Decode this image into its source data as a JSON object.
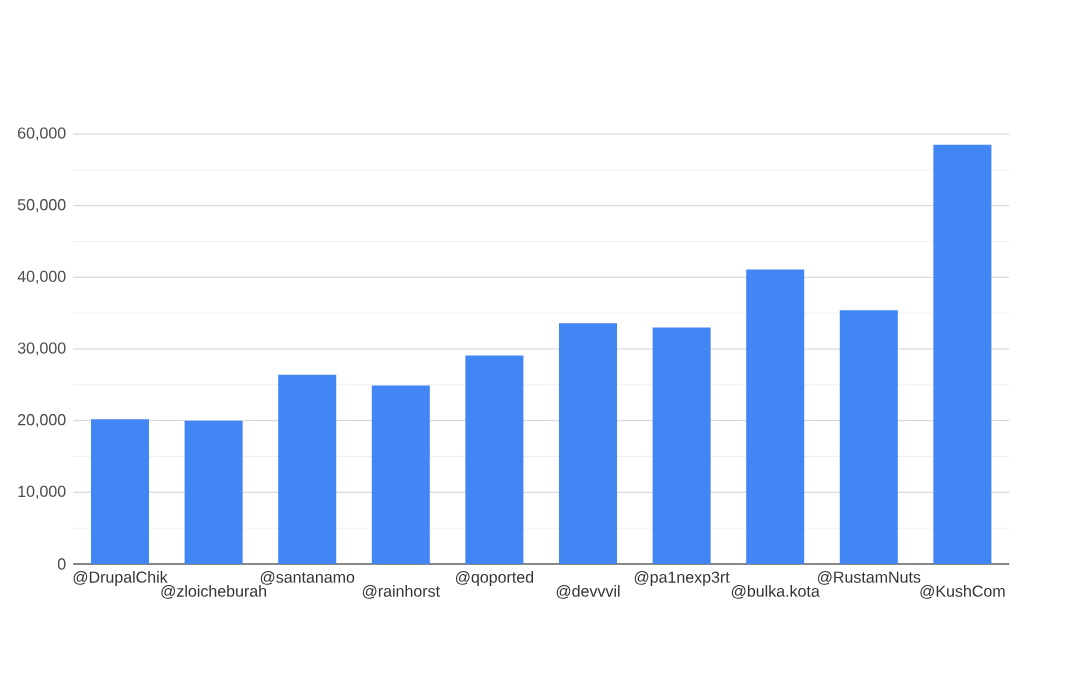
{
  "chart_data": {
    "type": "bar",
    "categories": [
      "@DrupalChik",
      "@zloicheburah",
      "@santanamo",
      "@rainhorst",
      "@qoported",
      "@devvvil",
      "@pa1nexp3rt",
      "@bulka.kota",
      "@RustamNuts",
      "@KushCom"
    ],
    "values": [
      20200,
      20000,
      26400,
      24900,
      29100,
      33600,
      33000,
      41100,
      35400,
      58500
    ],
    "color": "#4285f4",
    "ylim": [
      0,
      60000
    ],
    "yticks": [
      {
        "value": 0,
        "label": "0"
      },
      {
        "value": 5000,
        "label": null
      },
      {
        "value": 10000,
        "label": "10,000"
      },
      {
        "value": 15000,
        "label": null
      },
      {
        "value": 20000,
        "label": "20,000"
      },
      {
        "value": 25000,
        "label": null
      },
      {
        "value": 30000,
        "label": "30,000"
      },
      {
        "value": 35000,
        "label": null
      },
      {
        "value": 40000,
        "label": "40,000"
      },
      {
        "value": 45000,
        "label": null
      },
      {
        "value": 50000,
        "label": "50,000"
      },
      {
        "value": 55000,
        "label": null
      },
      {
        "value": 60000,
        "label": "60,000"
      }
    ],
    "grid": "y"
  }
}
